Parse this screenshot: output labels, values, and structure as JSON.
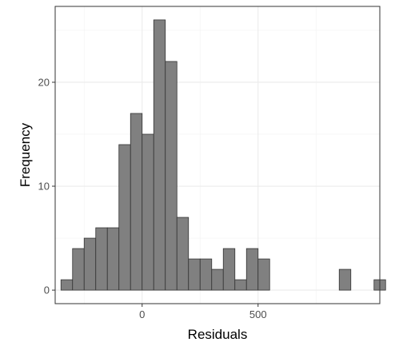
{
  "chart_data": {
    "type": "bar",
    "xlabel": "Residuals",
    "ylabel": "Frequency",
    "bin_width": 50,
    "bins": [
      {
        "x0": -350,
        "count": 1
      },
      {
        "x0": -300,
        "count": 4
      },
      {
        "x0": -250,
        "count": 5
      },
      {
        "x0": -200,
        "count": 6
      },
      {
        "x0": -150,
        "count": 6
      },
      {
        "x0": -100,
        "count": 14
      },
      {
        "x0": -50,
        "count": 17
      },
      {
        "x0": 0,
        "count": 15
      },
      {
        "x0": 50,
        "count": 26
      },
      {
        "x0": 100,
        "count": 22
      },
      {
        "x0": 150,
        "count": 7
      },
      {
        "x0": 200,
        "count": 3
      },
      {
        "x0": 250,
        "count": 3
      },
      {
        "x0": 300,
        "count": 2
      },
      {
        "x0": 350,
        "count": 4
      },
      {
        "x0": 400,
        "count": 1
      },
      {
        "x0": 450,
        "count": 4
      },
      {
        "x0": 500,
        "count": 3
      },
      {
        "x0": 550,
        "count": 0
      },
      {
        "x0": 600,
        "count": 0
      },
      {
        "x0": 650,
        "count": 0
      },
      {
        "x0": 700,
        "count": 0
      },
      {
        "x0": 750,
        "count": 0
      },
      {
        "x0": 800,
        "count": 0
      },
      {
        "x0": 850,
        "count": 2
      },
      {
        "x0": 900,
        "count": 0
      },
      {
        "x0": 950,
        "count": 0
      },
      {
        "x0": 1000,
        "count": 1
      }
    ],
    "xlim": [
      -375,
      1025
    ],
    "ylim": [
      -1.3,
      27.3
    ],
    "x_ticks": [
      0,
      500
    ],
    "x_tick_labels": [
      "0",
      "500"
    ],
    "y_ticks": [
      0,
      10,
      20
    ],
    "y_tick_labels": [
      "0",
      "10",
      "20"
    ],
    "grid": true,
    "bar_fill": "#808080",
    "bar_stroke": "#333333"
  }
}
